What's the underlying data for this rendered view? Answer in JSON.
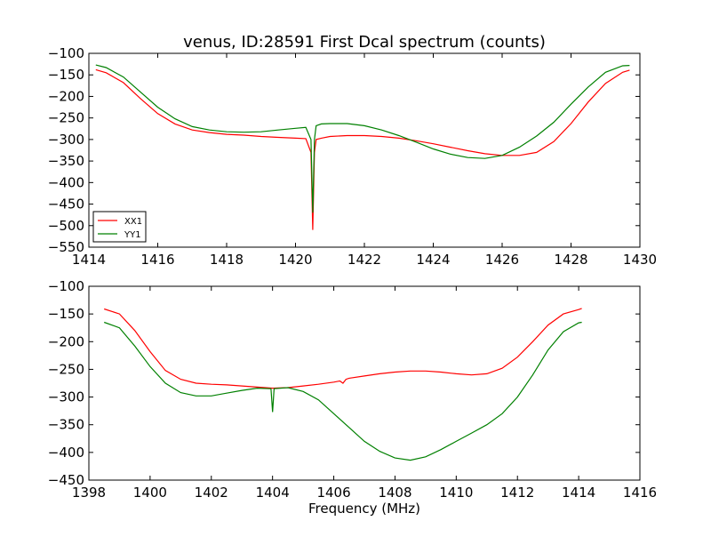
{
  "chart_data": [
    {
      "type": "line",
      "title": "venus, ID:28591 First Dcal spectrum (counts)",
      "xlabel": "",
      "ylabel": "",
      "xlim": [
        1414,
        1430
      ],
      "ylim": [
        -550,
        -100
      ],
      "xticks": [
        "1414",
        "1416",
        "1418",
        "1420",
        "1422",
        "1424",
        "1426",
        "1428",
        "1430"
      ],
      "yticks": [
        "−100",
        "−150",
        "−200",
        "−250",
        "−300",
        "−350",
        "−400",
        "−450",
        "−500",
        "−550"
      ],
      "grid": false,
      "legend": "lower-left",
      "series": [
        {
          "name": "XX1",
          "color": "#ff0000",
          "x": [
            1414.2,
            1414.5,
            1415.0,
            1415.5,
            1416.0,
            1416.5,
            1417.0,
            1417.5,
            1418.0,
            1418.5,
            1419.0,
            1419.5,
            1420.0,
            1420.3,
            1420.45,
            1420.5,
            1420.55,
            1420.6,
            1420.75,
            1421.0,
            1421.5,
            1422.0,
            1422.5,
            1423.0,
            1423.5,
            1424.0,
            1424.5,
            1425.0,
            1425.5,
            1426.0,
            1426.5,
            1427.0,
            1427.5,
            1428.0,
            1428.5,
            1429.0,
            1429.5,
            1429.7
          ],
          "y": [
            -138,
            -145,
            -168,
            -205,
            -240,
            -264,
            -278,
            -284,
            -288,
            -290,
            -293,
            -295,
            -297,
            -298,
            -330,
            -510,
            -330,
            -300,
            -297,
            -293,
            -291,
            -291,
            -293,
            -297,
            -303,
            -310,
            -318,
            -326,
            -333,
            -337,
            -337,
            -330,
            -305,
            -263,
            -213,
            -170,
            -144,
            -139
          ]
        },
        {
          "name": "YY1",
          "color": "#008000",
          "x": [
            1414.2,
            1414.5,
            1415.0,
            1415.5,
            1416.0,
            1416.5,
            1417.0,
            1417.5,
            1418.0,
            1418.5,
            1419.0,
            1419.5,
            1420.0,
            1420.3,
            1420.45,
            1420.5,
            1420.55,
            1420.6,
            1420.75,
            1421.0,
            1421.5,
            1422.0,
            1422.5,
            1423.0,
            1423.5,
            1424.0,
            1424.5,
            1425.0,
            1425.5,
            1426.0,
            1426.5,
            1427.0,
            1427.5,
            1428.0,
            1428.5,
            1429.0,
            1429.5,
            1429.7
          ],
          "y": [
            -127,
            -133,
            -155,
            -190,
            -225,
            -252,
            -270,
            -278,
            -282,
            -283,
            -282,
            -278,
            -274,
            -272,
            -300,
            -470,
            -300,
            -268,
            -264,
            -263,
            -263,
            -268,
            -278,
            -291,
            -306,
            -322,
            -334,
            -342,
            -344,
            -337,
            -318,
            -292,
            -260,
            -218,
            -178,
            -144,
            -129,
            -128
          ]
        }
      ]
    },
    {
      "type": "line",
      "title": "",
      "xlabel": "Frequency (MHz)",
      "ylabel": "",
      "xlim": [
        1398,
        1416
      ],
      "ylim": [
        -450,
        -100
      ],
      "xticks": [
        "1398",
        "1400",
        "1402",
        "1404",
        "1406",
        "1408",
        "1410",
        "1412",
        "1414",
        "1416"
      ],
      "yticks": [
        "−100",
        "−150",
        "−200",
        "−250",
        "−300",
        "−350",
        "−400",
        "−450"
      ],
      "grid": false,
      "series": [
        {
          "color": "#ff0000",
          "x": [
            1398.5,
            1399.0,
            1399.5,
            1400.0,
            1400.5,
            1401.0,
            1401.5,
            1402.0,
            1402.5,
            1403.0,
            1403.5,
            1404.0,
            1404.5,
            1405.0,
            1405.5,
            1406.0,
            1406.2,
            1406.3,
            1406.4,
            1406.5,
            1407.0,
            1407.5,
            1408.0,
            1408.5,
            1409.0,
            1409.5,
            1410.0,
            1410.5,
            1411.0,
            1411.5,
            1412.0,
            1412.5,
            1413.0,
            1413.5,
            1414.0,
            1414.1
          ],
          "y": [
            -141,
            -150,
            -180,
            -218,
            -252,
            -268,
            -275,
            -277,
            -278,
            -280,
            -282,
            -284,
            -283,
            -280,
            -277,
            -273,
            -271,
            -275,
            -268,
            -266,
            -262,
            -258,
            -255,
            -253,
            -253,
            -255,
            -258,
            -260,
            -258,
            -248,
            -228,
            -200,
            -170,
            -150,
            -142,
            -140
          ]
        },
        {
          "color": "#008000",
          "x": [
            1398.5,
            1399.0,
            1399.5,
            1400.0,
            1400.5,
            1401.0,
            1401.5,
            1402.0,
            1402.5,
            1403.0,
            1403.5,
            1403.95,
            1404.0,
            1404.05,
            1404.5,
            1405.0,
            1405.5,
            1406.0,
            1406.5,
            1407.0,
            1407.5,
            1408.0,
            1408.5,
            1409.0,
            1409.5,
            1410.0,
            1410.5,
            1411.0,
            1411.5,
            1412.0,
            1412.5,
            1413.0,
            1413.5,
            1414.0,
            1414.1
          ],
          "y": [
            -165,
            -175,
            -208,
            -245,
            -275,
            -292,
            -298,
            -298,
            -293,
            -288,
            -284,
            -285,
            -327,
            -285,
            -283,
            -290,
            -305,
            -330,
            -355,
            -380,
            -398,
            -410,
            -414,
            -408,
            -395,
            -380,
            -365,
            -350,
            -330,
            -300,
            -260,
            -215,
            -182,
            -166,
            -165
          ]
        }
      ]
    }
  ]
}
